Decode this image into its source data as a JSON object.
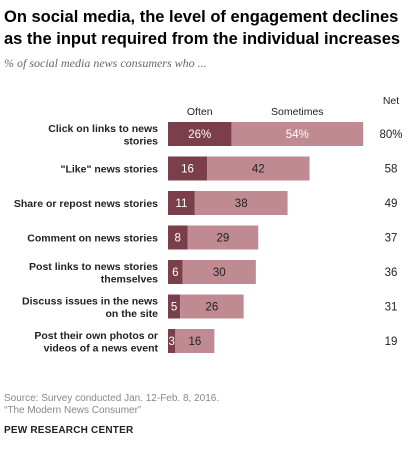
{
  "header": {
    "title": "On social media, the level of engagement declines as the input required from the individual increases",
    "subtitle": "% of social media news consumers who ..."
  },
  "chart_data": {
    "type": "bar",
    "stacked": true,
    "orientation": "horizontal",
    "categories": [
      "Click on links to news stories",
      "\"Like\" news stories",
      "Share or repost news stories",
      "Comment on news stories",
      "Post links to news stories themselves",
      "Discuss issues in the news on the site",
      "Post their own photos or videos of a news event"
    ],
    "series": [
      {
        "name": "Often",
        "values": [
          26,
          16,
          11,
          8,
          6,
          5,
          3
        ],
        "labels": [
          "26%",
          "16",
          "11",
          "8",
          "6",
          "5",
          "3"
        ],
        "color": "#7b3f4b"
      },
      {
        "name": "Sometimes",
        "values": [
          54,
          42,
          38,
          29,
          30,
          26,
          16
        ],
        "labels": [
          "54%",
          "42",
          "38",
          "29",
          "30",
          "26",
          "16"
        ],
        "color": "#c08a92"
      }
    ],
    "net_header": "Net",
    "net": [
      "80%",
      "58",
      "49",
      "37",
      "36",
      "31",
      "19"
    ],
    "xlim": [
      0,
      80
    ],
    "grid": false,
    "legend_placement": "top"
  },
  "footer": {
    "source": "Source: Survey conducted Jan. 12-Feb. 8, 2016.",
    "report": "“The Modern News Consumer”",
    "brand": "PEW RESEARCH CENTER"
  }
}
